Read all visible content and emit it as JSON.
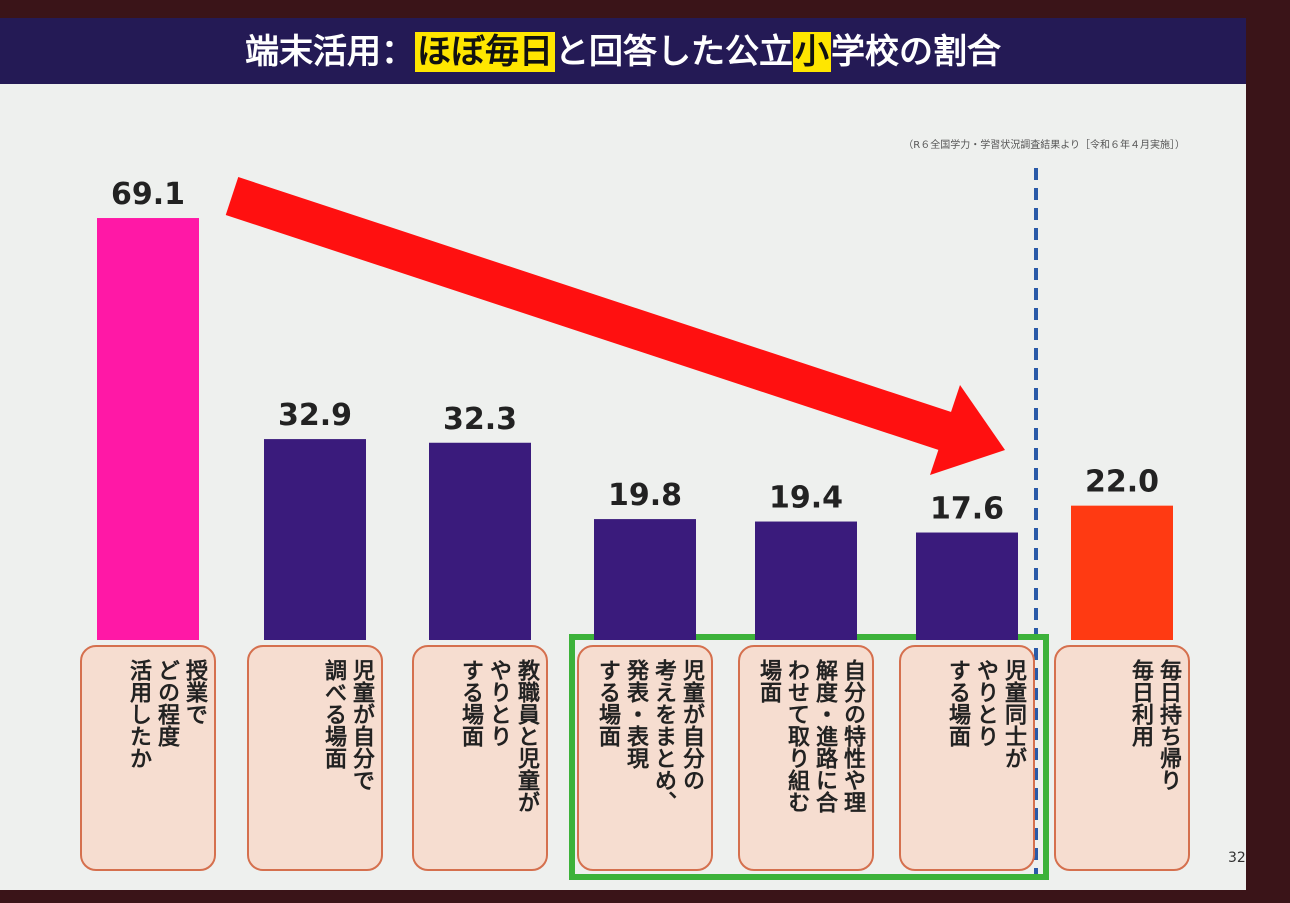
{
  "chart_data": {
    "type": "bar",
    "title": [
      {
        "text": "端末活用：",
        "highlight": false
      },
      {
        "text": "ほぼ毎日",
        "highlight": true
      },
      {
        "text": "と回答した公立",
        "highlight": false
      },
      {
        "text": "小",
        "highlight": true
      },
      {
        "text": "学校の割合",
        "highlight": false
      }
    ],
    "subtitle": "（R６全国学力・学習状況調査結果より［令和６年４月実施］）",
    "categories": [
      "授業で\nどの程度\n活用したか",
      "児童が自分で\n調べる場面",
      "教職員と児童が\nやりとり\nする場面",
      "児童が自分の\n考えをまとめ、\n発表・表現\nする場面",
      "自分の特性や理\n解度・進路に合\nわせて取り組む\n場面",
      "児童同士が\nやりとり\nする場面",
      "毎日持ち帰り\n毎日利用"
    ],
    "values": [
      69.1,
      32.9,
      32.3,
      19.8,
      19.4,
      17.6,
      22.0
    ],
    "value_labels": [
      "69.1",
      "32.9",
      "32.3",
      "19.8",
      "19.4",
      "17.6",
      "22.0"
    ],
    "colors": [
      "#ff18a6",
      "#3a1b7c",
      "#3a1b7c",
      "#3a1b7c",
      "#3a1b7c",
      "#3a1b7c",
      "#ff3a12"
    ],
    "ylim": [
      0,
      75
    ],
    "page_number": "32"
  }
}
